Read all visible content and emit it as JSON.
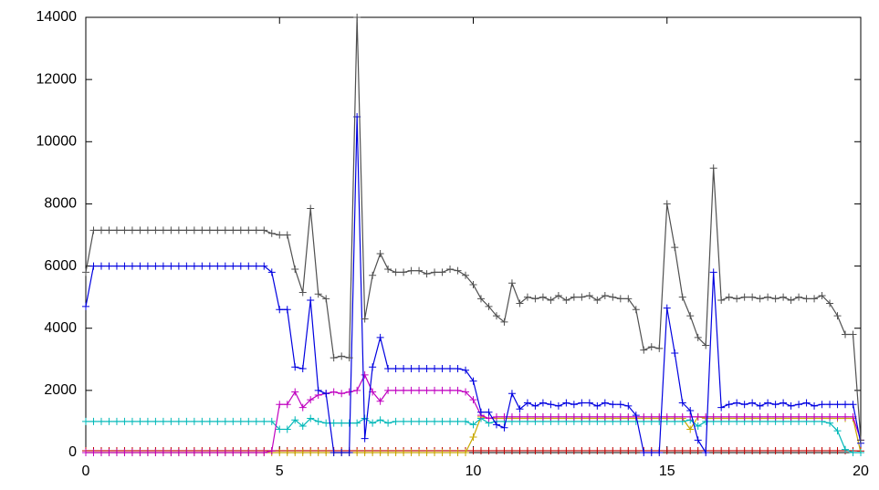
{
  "chart_data": {
    "type": "line",
    "x": [
      0,
      0.2,
      0.4,
      0.6,
      0.8,
      1,
      1.2,
      1.4,
      1.6,
      1.8,
      2,
      2.2,
      2.4,
      2.6,
      2.8,
      3,
      3.2,
      3.4,
      3.6,
      3.8,
      4,
      4.2,
      4.4,
      4.6,
      4.8,
      5,
      5.2,
      5.4,
      5.6,
      5.8,
      6,
      6.2,
      6.4,
      6.6,
      6.8,
      7,
      7.2,
      7.4,
      7.6,
      7.8,
      8,
      8.2,
      8.4,
      8.6,
      8.8,
      9,
      9.2,
      9.4,
      9.6,
      9.8,
      10,
      10.2,
      10.4,
      10.6,
      10.8,
      11,
      11.2,
      11.4,
      11.6,
      11.8,
      12,
      12.2,
      12.4,
      12.6,
      12.8,
      13,
      13.2,
      13.4,
      13.6,
      13.8,
      14,
      14.2,
      14.4,
      14.6,
      14.8,
      15,
      15.2,
      15.4,
      15.6,
      15.8,
      16,
      16.2,
      16.4,
      16.6,
      16.8,
      17,
      17.2,
      17.4,
      17.6,
      17.8,
      18,
      18.2,
      18.4,
      18.6,
      18.8,
      19,
      19.2,
      19.4,
      19.6,
      19.8,
      20
    ],
    "series": [
      {
        "color": "#c00000",
        "values": [
          60,
          60,
          60,
          60,
          60,
          60,
          60,
          60,
          60,
          60,
          60,
          60,
          60,
          60,
          60,
          60,
          60,
          60,
          60,
          60,
          60,
          60,
          60,
          60,
          60,
          60,
          60,
          60,
          60,
          60,
          60,
          60,
          60,
          60,
          60,
          60,
          60,
          60,
          60,
          60,
          60,
          60,
          60,
          60,
          60,
          60,
          60,
          60,
          60,
          60,
          60,
          60,
          60,
          60,
          60,
          60,
          60,
          60,
          60,
          60,
          60,
          60,
          60,
          60,
          60,
          60,
          60,
          60,
          60,
          60,
          60,
          60,
          60,
          60,
          60,
          60,
          60,
          60,
          60,
          60,
          60,
          60,
          60,
          60,
          60,
          60,
          60,
          60,
          60,
          60,
          60,
          60,
          60,
          60,
          60,
          60,
          60,
          60,
          60,
          60,
          50
        ]
      },
      {
        "color": "#c8a800",
        "values": [
          0,
          0,
          0,
          0,
          0,
          0,
          0,
          0,
          0,
          0,
          0,
          0,
          0,
          0,
          0,
          0,
          0,
          0,
          0,
          0,
          0,
          0,
          0,
          0,
          0,
          0,
          0,
          0,
          0,
          0,
          0,
          0,
          0,
          0,
          0,
          0,
          0,
          0,
          0,
          0,
          0,
          0,
          0,
          0,
          0,
          0,
          0,
          0,
          0,
          0,
          500,
          1150,
          1100,
          1100,
          1100,
          1100,
          1100,
          1100,
          1100,
          1100,
          1100,
          1100,
          1100,
          1100,
          1100,
          1100,
          1100,
          1100,
          1100,
          1100,
          1100,
          1100,
          1100,
          1100,
          1100,
          1100,
          1100,
          1100,
          750,
          1150,
          1100,
          1100,
          1100,
          1100,
          1100,
          1100,
          1100,
          1100,
          1100,
          1100,
          1100,
          1100,
          1100,
          1100,
          1100,
          1100,
          1100,
          1100,
          1100,
          1100,
          0
        ]
      },
      {
        "color": "#00b8b8",
        "values": [
          1000,
          1000,
          1000,
          1000,
          1000,
          1000,
          1000,
          1000,
          1000,
          1000,
          1000,
          1000,
          1000,
          1000,
          1000,
          1000,
          1000,
          1000,
          1000,
          1000,
          1000,
          1000,
          1000,
          1000,
          1000,
          750,
          750,
          1050,
          850,
          1100,
          1000,
          950,
          950,
          950,
          950,
          950,
          1100,
          950,
          1050,
          950,
          1000,
          1000,
          1000,
          1000,
          1000,
          1000,
          1000,
          1000,
          1000,
          1000,
          900,
          1100,
          950,
          1000,
          1000,
          1000,
          1000,
          1000,
          1000,
          1000,
          1000,
          1000,
          1000,
          1000,
          1000,
          1000,
          1000,
          1000,
          1000,
          1000,
          1000,
          1000,
          1000,
          1000,
          1000,
          1000,
          1000,
          1000,
          1050,
          850,
          1000,
          1000,
          1000,
          1000,
          1000,
          1000,
          1000,
          1000,
          1000,
          1000,
          1000,
          1000,
          1000,
          1000,
          1000,
          1000,
          950,
          700,
          100,
          0,
          0
        ]
      },
      {
        "color": "#c000c0",
        "values": [
          0,
          0,
          0,
          0,
          0,
          0,
          0,
          0,
          0,
          0,
          0,
          0,
          0,
          0,
          0,
          0,
          0,
          0,
          0,
          0,
          0,
          0,
          0,
          0,
          50,
          1550,
          1550,
          1950,
          1450,
          1700,
          1850,
          1900,
          1950,
          1900,
          1950,
          2000,
          2500,
          1950,
          1650,
          2000,
          2000,
          2000,
          2000,
          2000,
          2000,
          2000,
          2000,
          2000,
          2000,
          1950,
          1700,
          1200,
          1100,
          1150,
          1150,
          1150,
          1150,
          1150,
          1150,
          1150,
          1150,
          1150,
          1150,
          1150,
          1150,
          1150,
          1150,
          1150,
          1150,
          1150,
          1150,
          1150,
          1150,
          1150,
          1150,
          1150,
          1150,
          1150,
          1150,
          1150,
          1150,
          1150,
          1150,
          1150,
          1150,
          1150,
          1150,
          1150,
          1150,
          1150,
          1150,
          1150,
          1150,
          1150,
          1150,
          1150,
          1150,
          1150,
          1150,
          1150,
          400
        ]
      },
      {
        "color": "#0000e0",
        "values": [
          4700,
          6000,
          6000,
          6000,
          6000,
          6000,
          6000,
          6000,
          6000,
          6000,
          6000,
          6000,
          6000,
          6000,
          6000,
          6000,
          6000,
          6000,
          6000,
          6000,
          6000,
          6000,
          6000,
          6000,
          5800,
          4600,
          4600,
          2750,
          2700,
          4900,
          2000,
          1900,
          0,
          0,
          0,
          10800,
          450,
          2750,
          3700,
          2700,
          2700,
          2700,
          2700,
          2700,
          2700,
          2700,
          2700,
          2700,
          2700,
          2650,
          2300,
          1300,
          1300,
          900,
          800,
          1900,
          1400,
          1600,
          1500,
          1600,
          1550,
          1500,
          1600,
          1550,
          1600,
          1600,
          1500,
          1600,
          1550,
          1550,
          1500,
          1200,
          0,
          0,
          0,
          4650,
          3200,
          1600,
          1350,
          400,
          0,
          5800,
          1450,
          1550,
          1600,
          1550,
          1600,
          1500,
          1600,
          1550,
          1600,
          1500,
          1550,
          1600,
          1500,
          1550,
          1550,
          1550,
          1550,
          1550,
          300
        ]
      },
      {
        "color": "#505050",
        "values": [
          5800,
          7150,
          7150,
          7150,
          7150,
          7150,
          7150,
          7150,
          7150,
          7150,
          7150,
          7150,
          7150,
          7150,
          7150,
          7150,
          7150,
          7150,
          7150,
          7150,
          7150,
          7150,
          7150,
          7150,
          7050,
          7000,
          7000,
          5900,
          5150,
          7850,
          5100,
          4950,
          3050,
          3100,
          3050,
          14000,
          4300,
          5700,
          6400,
          5900,
          5800,
          5800,
          5850,
          5850,
          5750,
          5800,
          5800,
          5900,
          5850,
          5700,
          5400,
          4950,
          4700,
          4400,
          4200,
          5450,
          4800,
          5000,
          4950,
          5000,
          4900,
          5050,
          4900,
          5000,
          5000,
          5050,
          4900,
          5050,
          5000,
          4950,
          4950,
          4600,
          3300,
          3400,
          3350,
          8000,
          6600,
          5000,
          4400,
          3700,
          3450,
          9150,
          4900,
          5000,
          4950,
          5000,
          5000,
          4950,
          5000,
          4950,
          5000,
          4900,
          5000,
          4950,
          4950,
          5050,
          4800,
          4400,
          3800,
          3800,
          400
        ]
      }
    ],
    "xlim": [
      0,
      20
    ],
    "xticks": [
      0,
      5,
      10,
      15,
      20
    ],
    "ylim": [
      0,
      14000
    ],
    "yticks": [
      0,
      2000,
      4000,
      6000,
      8000,
      10000,
      12000,
      14000
    ]
  }
}
